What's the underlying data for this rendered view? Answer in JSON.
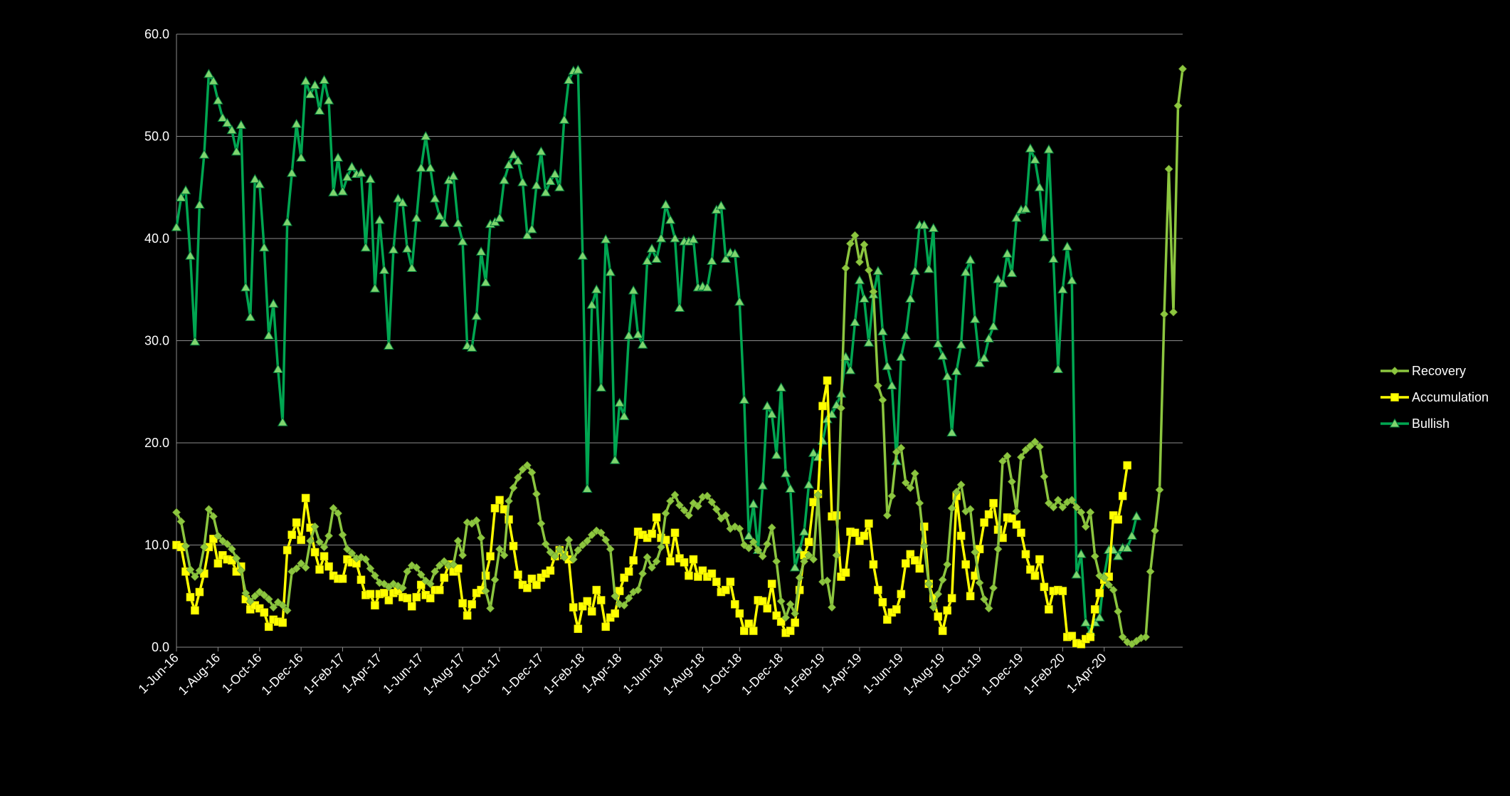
{
  "chart_data": {
    "type": "line",
    "title": "",
    "xlabel": "",
    "ylabel": "",
    "ylim": [
      0,
      60
    ],
    "y_ticks": [
      0,
      10,
      20,
      30,
      40,
      50,
      60
    ],
    "y_tick_labels": [
      "0.0",
      "10.0",
      "20.0",
      "30.0",
      "40.0",
      "50.0",
      "60.0"
    ],
    "grid": "horizontal",
    "legend_position": "right",
    "x_tick_labels": [
      "1-Jun-16",
      "1-Aug-16",
      "1-Oct-16",
      "1-Dec-16",
      "1-Feb-17",
      "1-Apr-17",
      "1-Jun-17",
      "1-Aug-17",
      "1-Oct-17",
      "1-Dec-17",
      "1-Feb-18",
      "1-Apr-18",
      "1-Jun-18",
      "1-Aug-18",
      "1-Oct-18",
      "1-Dec-18",
      "1-Feb-19",
      "1-Apr-19",
      "1-Jun-19",
      "1-Aug-19",
      "1-Oct-19",
      "1-Dec-19",
      "1-Feb-20",
      "1-Apr-20"
    ],
    "x_tick_index": [
      0,
      9,
      18,
      27,
      36,
      44,
      53,
      62,
      70,
      79,
      88,
      96,
      105,
      114,
      122,
      131,
      140,
      148,
      157,
      166,
      174,
      183,
      192,
      201
    ],
    "series": [
      {
        "name": "Recovery",
        "color": "#8CC63F",
        "marker": "diamond",
        "values": [
          13.2,
          12.3,
          9.9,
          7.6,
          6.9,
          7.5,
          9.8,
          13.5,
          12.8,
          10.9,
          10.4,
          10.1,
          9.6,
          8.7,
          7.5,
          5.3,
          4.5,
          5.0,
          5.4,
          5.1,
          4.7,
          3.9,
          4.4,
          4.1,
          3.6,
          7.4,
          7.7,
          8.2,
          7.8,
          10.4,
          11.8,
          10.3,
          9.8,
          10.9,
          13.6,
          13.1,
          11.0,
          9.6,
          9.2,
          8.7,
          8.8,
          8.6,
          7.7,
          7.0,
          6.3,
          6.2,
          5.9,
          6.2,
          6.0,
          5.8,
          7.4,
          8.0,
          7.8,
          7.1,
          6.5,
          6.2,
          7.4,
          8.0,
          8.4,
          8.0,
          8.1,
          10.4,
          9.0,
          12.2,
          12.1,
          12.4,
          10.7,
          5.5,
          3.8,
          6.6,
          9.6,
          9.0,
          14.3,
          15.6,
          16.6,
          17.4,
          17.8,
          17.1,
          15.0,
          12.1,
          10.1,
          9.3,
          8.9,
          9.6,
          8.8,
          10.5,
          8.6,
          9.5,
          10.0,
          10.4,
          11.0,
          11.4,
          11.2,
          10.5,
          9.6,
          5.0,
          4.2,
          4.1,
          4.8,
          5.4,
          5.6,
          7.2,
          8.8,
          7.8,
          8.4,
          9.8,
          13.1,
          14.3,
          14.9,
          13.9,
          13.4,
          12.9,
          14.1,
          13.8,
          14.7,
          14.8,
          14.2,
          13.5,
          12.6,
          12.9,
          11.6,
          11.8,
          11.6,
          10.0,
          9.7,
          10.3,
          9.5,
          8.9,
          10.1,
          11.7,
          8.4,
          4.5,
          2.9,
          4.2,
          3.3,
          6.8,
          8.4,
          9.0,
          8.6,
          14.9,
          6.4,
          6.5,
          3.9,
          9.0,
          23.4,
          37.1,
          39.5,
          40.3,
          37.7,
          39.4,
          36.9,
          34.8,
          25.6,
          24.2,
          12.9,
          14.8,
          19.1,
          19.5,
          16.1,
          15.6,
          17.0,
          14.1,
          9.9,
          6.2,
          3.9,
          5.2,
          6.6,
          8.1,
          13.6,
          15.2,
          15.9,
          13.3,
          13.5,
          9.3,
          6.3,
          4.7,
          3.8,
          5.8,
          9.6,
          18.2,
          18.7,
          16.2,
          13.3,
          18.6,
          19.3,
          19.7,
          20.1,
          19.6,
          16.7,
          14.1,
          13.7,
          14.4,
          13.7,
          14.2,
          14.4,
          13.7,
          13.2,
          11.8,
          13.2,
          8.9,
          7.0,
          6.8,
          6.1,
          5.6,
          3.5,
          1.0,
          0.5,
          0.3,
          0.6,
          0.9,
          1.0,
          7.4,
          11.4,
          15.4,
          32.6,
          46.8,
          32.8,
          53.0,
          56.6
        ]
      },
      {
        "name": "Accumulation",
        "color": "#FFFF00",
        "marker": "square",
        "values": [
          10.0,
          9.8,
          7.4,
          4.9,
          3.6,
          5.4,
          7.2,
          9.8,
          10.6,
          8.2,
          9.0,
          8.6,
          8.5,
          7.4,
          7.9,
          4.7,
          3.7,
          4.1,
          3.8,
          3.4,
          2.0,
          2.7,
          2.5,
          2.4,
          9.5,
          11.0,
          12.2,
          10.5,
          14.6,
          11.7,
          9.3,
          7.6,
          8.9,
          7.9,
          7.0,
          6.7,
          6.7,
          8.6,
          8.3,
          8.2,
          6.6,
          5.1,
          5.2,
          4.1,
          5.2,
          5.3,
          4.6,
          5.3,
          5.5,
          4.9,
          4.8,
          4.0,
          4.9,
          6.1,
          5.1,
          4.8,
          5.6,
          5.6,
          6.8,
          8.1,
          7.4,
          7.7,
          4.3,
          3.1,
          4.2,
          5.3,
          5.6,
          7.0,
          8.9,
          13.6,
          14.4,
          13.5,
          12.5,
          9.9,
          7.1,
          6.1,
          5.8,
          6.7,
          6.1,
          6.8,
          7.2,
          7.5,
          8.9,
          9.5,
          9.0,
          8.6,
          3.9,
          1.8,
          4.0,
          4.5,
          3.5,
          5.6,
          4.6,
          2.0,
          2.9,
          3.3,
          5.5,
          6.8,
          7.4,
          8.5,
          11.3,
          11.0,
          10.7,
          11.1,
          12.7,
          10.7,
          10.5,
          8.4,
          11.2,
          8.7,
          8.3,
          7.0,
          8.6,
          6.9,
          7.5,
          6.9,
          7.2,
          6.4,
          5.4,
          5.6,
          6.4,
          4.2,
          3.3,
          1.6,
          2.3,
          1.6,
          4.6,
          4.5,
          3.8,
          6.2,
          3.1,
          2.5,
          1.4,
          1.6,
          2.4,
          5.6,
          9.0,
          10.3,
          14.2,
          15.0,
          23.6,
          26.1,
          12.8,
          12.9,
          6.9,
          7.3,
          11.3,
          11.2,
          10.4,
          10.9,
          12.1,
          8.1,
          5.6,
          4.4,
          2.7,
          3.4,
          3.7,
          5.2,
          8.2,
          9.1,
          8.5,
          7.7,
          11.8,
          6.2,
          4.8,
          3.0,
          1.6,
          3.6,
          4.8,
          14.8,
          10.9,
          8.1,
          5.0,
          7.0,
          9.6,
          12.2,
          13.0,
          14.1,
          11.5,
          10.7,
          12.7,
          12.6,
          12.0,
          11.2,
          9.1,
          7.6,
          7.0,
          8.6,
          5.9,
          3.7,
          5.5,
          5.6,
          5.5,
          1.0,
          1.1,
          0.4,
          0.3,
          0.8,
          1.0,
          3.7,
          5.3,
          6.6,
          6.9,
          12.9,
          12.5,
          14.8,
          17.8
        ]
      },
      {
        "name": "Bullish",
        "color": "#00A651",
        "marker": "triangle",
        "values": [
          41.1,
          44.0,
          44.7,
          38.3,
          29.9,
          43.3,
          48.2,
          56.1,
          55.4,
          53.5,
          51.8,
          51.3,
          50.6,
          48.5,
          51.1,
          35.2,
          32.3,
          45.8,
          45.3,
          39.1,
          30.5,
          33.6,
          27.2,
          22.0,
          41.6,
          46.4,
          51.2,
          47.9,
          55.4,
          54.1,
          55.0,
          52.5,
          55.5,
          53.5,
          44.5,
          47.9,
          44.6,
          46.0,
          47.0,
          46.3,
          46.4,
          39.1,
          45.8,
          35.1,
          41.8,
          36.9,
          29.5,
          38.9,
          43.9,
          43.5,
          39.0,
          37.1,
          42.0,
          46.9,
          50.0,
          46.9,
          43.9,
          42.2,
          41.5,
          45.7,
          46.1,
          41.5,
          39.7,
          29.5,
          29.3,
          32.4,
          38.7,
          35.7,
          41.4,
          41.6,
          42.0,
          45.7,
          47.2,
          48.2,
          47.6,
          45.5,
          40.3,
          40.9,
          45.2,
          48.5,
          44.5,
          45.6,
          46.3,
          45.0,
          51.6,
          55.5,
          56.4,
          56.5,
          38.3,
          15.5,
          33.5,
          35.0,
          25.4,
          39.9,
          36.7,
          18.3,
          23.9,
          22.6,
          30.5,
          34.9,
          30.6,
          29.6,
          37.8,
          39.0,
          38.0,
          40.0,
          43.3,
          41.8,
          40.0,
          33.2,
          39.7,
          39.7,
          39.9,
          35.2,
          35.3,
          35.2,
          37.8,
          42.8,
          43.2,
          38.0,
          38.6,
          38.5,
          33.8,
          24.2,
          10.9,
          14.0,
          9.5,
          15.8,
          23.6,
          22.8,
          18.8,
          25.4,
          17.0,
          15.5,
          7.8,
          9.5,
          11.3,
          15.9,
          19.0,
          18.6,
          20.2,
          22.3,
          22.8,
          23.7,
          24.8,
          28.4,
          27.1,
          31.8,
          35.9,
          34.1,
          29.8,
          34.5,
          36.8,
          30.9,
          27.5,
          25.6,
          18.2,
          28.4,
          30.5,
          34.1,
          36.8,
          41.3,
          41.3,
          37.0,
          41.0,
          29.7,
          28.5,
          26.5,
          21.0,
          27.0,
          29.6,
          36.7,
          37.9,
          32.1,
          27.8,
          28.3,
          30.2,
          31.4,
          36.0,
          35.6,
          38.5,
          36.6,
          42.0,
          42.8,
          42.9,
          48.8,
          47.7,
          45.0,
          40.1,
          48.7,
          38.0,
          27.2,
          35.0,
          39.2,
          35.9,
          7.1,
          9.1,
          2.4,
          1.5,
          2.4,
          2.9,
          7.0,
          9.5,
          9.5,
          8.9,
          9.7,
          9.7,
          10.9,
          12.8
        ]
      }
    ]
  }
}
